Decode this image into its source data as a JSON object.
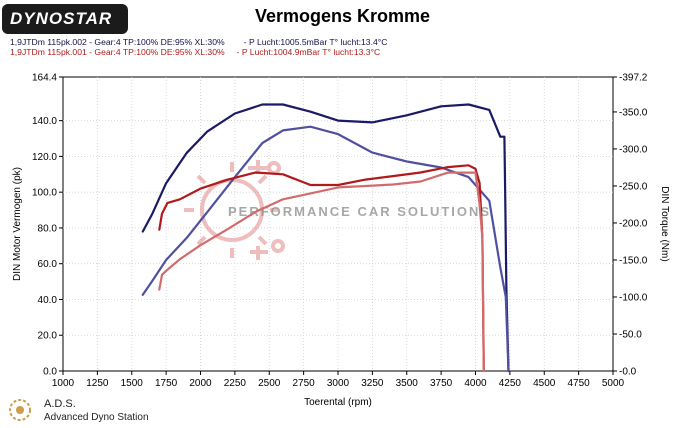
{
  "header": {
    "logo_text": "DYNOSTAR",
    "title": "Vermogens Kromme",
    "run1": "1,9JTDm 115pk.002 - Gear:4 TP:100% DE:95% XL:30%        - P Lucht:1005.5mBar T° lucht:13.4°C",
    "run2": "1,9JTDm 115pk.001 - Gear:4 TP:100% DE:95% XL:30%     - P Lucht:1004.9mBar T° lucht:13.3°C"
  },
  "footer": {
    "name": "A.D.S.",
    "description": "Advanced Dyno Station"
  },
  "watermark": {
    "text": "PERFORMANCE CAR SOLUTIONS"
  },
  "colors": {
    "run1": "#1a1a66",
    "run1_torque": "#5050a0",
    "run2": "#b01a1a",
    "run2_torque": "#d26b6b"
  },
  "chart_data": {
    "type": "line",
    "title": "Vermogens Kromme",
    "xlabel": "Toerental (rpm)",
    "ylabel": "DIN Motor Vermogen (pk)",
    "y2label": "DIN Torque (Nm)",
    "xlim": [
      1000,
      5000
    ],
    "ylim": [
      0,
      164.4
    ],
    "y2lim": [
      0,
      397.2
    ],
    "x_ticks": [
      "1000",
      "1250",
      "1500",
      "1750",
      "2000",
      "2250",
      "2500",
      "2750",
      "3000",
      "3250",
      "3500",
      "3750",
      "4000",
      "4250",
      "4500",
      "4750",
      "5000"
    ],
    "y_ticks": [
      "0.0",
      "20.0",
      "40.0",
      "60.0",
      "80.0",
      "100.0",
      "120.0",
      "140.0",
      "164.4"
    ],
    "y2_ticks": [
      "-0.0",
      "-50.0",
      "-100.0",
      "-150.0",
      "-200.0",
      "-250.0",
      "-300.0",
      "-350.0",
      "-397.2"
    ],
    "grid": true,
    "series": [
      {
        "name": "1,9JTDm 115pk.002 vermogen",
        "axis": "left",
        "color": "#1a1a66",
        "x": [
          1580,
          1650,
          1750,
          1900,
          2050,
          2250,
          2450,
          2600,
          2800,
          3000,
          3250,
          3500,
          3750,
          3950,
          4100,
          4180,
          4210,
          4215,
          4225,
          4240
        ],
        "y": [
          78,
          88,
          105,
          122,
          134,
          144,
          149,
          149,
          145,
          140,
          139,
          143,
          148,
          149,
          146,
          131,
          131,
          103,
          45,
          0
        ]
      },
      {
        "name": "1,9JTDm 115pk.002 torque",
        "axis": "right",
        "color": "#5050a0",
        "x": [
          1580,
          1650,
          1750,
          1900,
          2050,
          2250,
          2450,
          2600,
          2800,
          3000,
          3250,
          3500,
          3750,
          3950,
          4100,
          4180,
          4220,
          4240
        ],
        "y": [
          103,
          122,
          150,
          180,
          215,
          262,
          308,
          325,
          330,
          320,
          295,
          283,
          275,
          262,
          230,
          140,
          100,
          0
        ]
      },
      {
        "name": "1,9JTDm 115pk.001 vermogen",
        "axis": "left",
        "color": "#b01a1a",
        "x": [
          1700,
          1720,
          1760,
          1850,
          2000,
          2200,
          2400,
          2600,
          2800,
          3000,
          3200,
          3400,
          3600,
          3800,
          3950,
          4000,
          4030,
          4050,
          4060
        ],
        "y": [
          79,
          88,
          94,
          96,
          102,
          107,
          111,
          110,
          104,
          104,
          107,
          109,
          111,
          114,
          115,
          113,
          105,
          74,
          0
        ]
      },
      {
        "name": "1,9JTDm 115pk.001 torque",
        "axis": "right",
        "color": "#d26b6b",
        "x": [
          1700,
          1720,
          1760,
          1850,
          2000,
          2200,
          2400,
          2600,
          2800,
          3000,
          3200,
          3400,
          3600,
          3800,
          4000,
          4030,
          4050,
          4060
        ],
        "y": [
          110,
          130,
          137,
          151,
          170,
          192,
          215,
          232,
          240,
          248,
          250,
          252,
          256,
          268,
          268,
          225,
          180,
          0
        ]
      }
    ]
  }
}
